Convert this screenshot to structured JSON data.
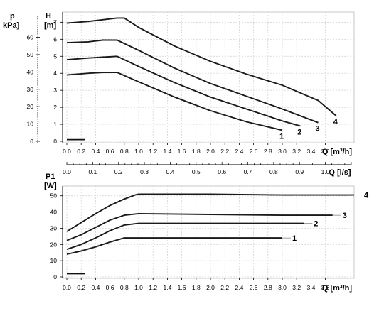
{
  "chart_data": [
    {
      "type": "line",
      "left_axis_label": [
        "p",
        "kPa]"
      ],
      "right_axis_label": [
        "H",
        "[m]"
      ],
      "xlabel": "Q [m³/h]",
      "x_ticks": [
        0.0,
        0.2,
        0.4,
        0.6,
        0.8,
        1.0,
        1.2,
        1.4,
        1.6,
        1.8,
        2.0,
        2.2,
        2.4,
        2.6,
        2.8,
        3.0,
        3.2,
        3.4,
        3.6
      ],
      "x_tick_labels": [
        "0.0",
        "0.2",
        "0.4",
        "0.6",
        "0.8",
        "1.0",
        "1.2",
        "1.4",
        "1.6",
        "1.8",
        "2.0",
        "2.2",
        "2.4",
        "2.6",
        "2.8",
        "3.0",
        "3.2",
        "3.4",
        "3.6"
      ],
      "xlim": [
        0,
        4.0
      ],
      "h_ticks": [
        0,
        1,
        2,
        3,
        4,
        5,
        6,
        7
      ],
      "h_tick_labels": [
        "0",
        "1",
        "2",
        "3",
        "4",
        "5",
        "6",
        "7"
      ],
      "ylim": [
        0,
        7.6
      ],
      "p_ticks": [
        0,
        10,
        20,
        30,
        40,
        50,
        60
      ],
      "p_tick_labels": [
        "0",
        "10",
        "20",
        "30",
        "40",
        "50",
        "60"
      ],
      "secondary_axis": {
        "label": "Q [l/s]",
        "ticks": [
          0.0,
          0.1,
          0.2,
          0.3,
          0.4,
          0.5,
          0.6,
          0.7,
          0.8,
          0.9,
          1.0
        ],
        "tick_labels": [
          "0.0",
          "0.1",
          "0.2",
          "0.3",
          "0.4",
          "0.5",
          "0.6",
          "0.7",
          "0.8",
          "0.9",
          "1.0"
        ],
        "minor_step": 0.025
      },
      "grid": true,
      "low_segment": {
        "x": [
          0.0,
          0.25
        ],
        "y": [
          0.1,
          0.1
        ]
      },
      "series": [
        {
          "name": "1",
          "x": [
            0.0,
            0.3,
            0.5,
            0.7,
            1.0,
            1.5,
            2.0,
            2.5,
            3.0
          ],
          "y": [
            3.9,
            4.0,
            4.05,
            4.05,
            3.5,
            2.6,
            1.8,
            1.15,
            0.65
          ]
        },
        {
          "name": "2",
          "x": [
            0.0,
            0.3,
            0.5,
            0.7,
            1.0,
            1.5,
            2.0,
            2.5,
            3.0,
            3.25
          ],
          "y": [
            4.8,
            4.9,
            4.95,
            5.0,
            4.4,
            3.45,
            2.6,
            1.9,
            1.2,
            0.9
          ]
        },
        {
          "name": "3",
          "x": [
            0.0,
            0.3,
            0.5,
            0.7,
            1.0,
            1.5,
            2.0,
            2.5,
            3.0,
            3.5
          ],
          "y": [
            5.8,
            5.85,
            5.95,
            5.95,
            5.35,
            4.3,
            3.4,
            2.65,
            1.9,
            1.1
          ]
        },
        {
          "name": "4",
          "x": [
            0.0,
            0.3,
            0.5,
            0.7,
            0.8,
            1.0,
            1.5,
            2.0,
            2.5,
            3.0,
            3.5,
            3.75
          ],
          "y": [
            6.95,
            7.05,
            7.15,
            7.25,
            7.25,
            6.7,
            5.6,
            4.7,
            3.95,
            3.3,
            2.4,
            1.5
          ]
        }
      ]
    },
    {
      "type": "line",
      "ylabel": [
        "P1",
        "[W]"
      ],
      "xlabel": "Q [m³/h]",
      "x_ticks": [
        0.0,
        0.2,
        0.4,
        0.6,
        0.8,
        1.0,
        1.2,
        1.4,
        1.6,
        1.8,
        2.0,
        2.2,
        2.4,
        2.6,
        2.8,
        3.0,
        3.2,
        3.4,
        3.6
      ],
      "x_tick_labels": [
        "0.0",
        "0.2",
        "0.4",
        "0.6",
        "0.8",
        "1.0",
        "1.2",
        "1.4",
        "1.6",
        "1.8",
        "2.0",
        "2.2",
        "2.4",
        "2.6",
        "2.8",
        "3.0",
        "3.2",
        "3.4",
        "3.6"
      ],
      "xlim": [
        0,
        4.0
      ],
      "y_ticks": [
        0,
        10,
        20,
        30,
        40,
        50
      ],
      "y_tick_labels": [
        "0",
        "10",
        "20",
        "30",
        "40",
        "50"
      ],
      "ylim": [
        0,
        56
      ],
      "grid": true,
      "low_segment": {
        "x": [
          0.0,
          0.25
        ],
        "y": [
          2,
          2
        ]
      },
      "series": [
        {
          "name": "1",
          "x": [
            0.0,
            0.2,
            0.4,
            0.6,
            0.8,
            1.0,
            2.0,
            3.0
          ],
          "y": [
            14,
            16,
            18.5,
            21.5,
            24,
            24,
            24,
            24
          ]
        },
        {
          "name": "2",
          "x": [
            0.0,
            0.2,
            0.4,
            0.6,
            0.8,
            1.0,
            2.0,
            3.3
          ],
          "y": [
            17,
            20,
            24,
            28.5,
            32,
            33,
            33,
            33
          ]
        },
        {
          "name": "3",
          "x": [
            0.0,
            0.2,
            0.4,
            0.6,
            0.8,
            1.0,
            2.0,
            3.0,
            3.7
          ],
          "y": [
            22.5,
            26,
            30.5,
            35,
            38,
            39,
            38.5,
            38,
            38
          ]
        },
        {
          "name": "4",
          "x": [
            0.0,
            0.2,
            0.4,
            0.6,
            0.8,
            0.95,
            1.0,
            2.0,
            3.0,
            4.0
          ],
          "y": [
            28,
            33.5,
            39,
            44,
            48,
            50.5,
            51,
            51,
            50.5,
            50.5
          ]
        }
      ]
    }
  ]
}
